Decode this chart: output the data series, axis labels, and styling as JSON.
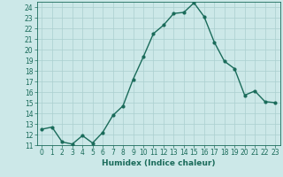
{
  "xlabel": "Humidex (Indice chaleur)",
  "x": [
    0,
    1,
    2,
    3,
    4,
    5,
    6,
    7,
    8,
    9,
    10,
    11,
    12,
    13,
    14,
    15,
    16,
    17,
    18,
    19,
    20,
    21,
    22,
    23
  ],
  "y": [
    12.5,
    12.7,
    11.3,
    11.1,
    11.9,
    11.2,
    12.2,
    13.8,
    14.7,
    17.2,
    19.3,
    21.5,
    22.3,
    23.4,
    23.5,
    24.4,
    23.1,
    20.7,
    18.9,
    18.2,
    15.7,
    16.1,
    15.1,
    15.0
  ],
  "line_color": "#1a6b5a",
  "marker": "o",
  "markersize": 2.0,
  "linewidth": 1.0,
  "bg_color": "#cce8e8",
  "grid_color": "#aacfcf",
  "tick_color": "#1a6b5a",
  "label_color": "#1a6b5a",
  "ylim": [
    11,
    24.5
  ],
  "yticks": [
    11,
    12,
    13,
    14,
    15,
    16,
    17,
    18,
    19,
    20,
    21,
    22,
    23,
    24
  ],
  "xticks": [
    0,
    1,
    2,
    3,
    4,
    5,
    6,
    7,
    8,
    9,
    10,
    11,
    12,
    13,
    14,
    15,
    16,
    17,
    18,
    19,
    20,
    21,
    22,
    23
  ],
  "tick_fontsize": 5.5,
  "xlabel_fontsize": 6.5
}
